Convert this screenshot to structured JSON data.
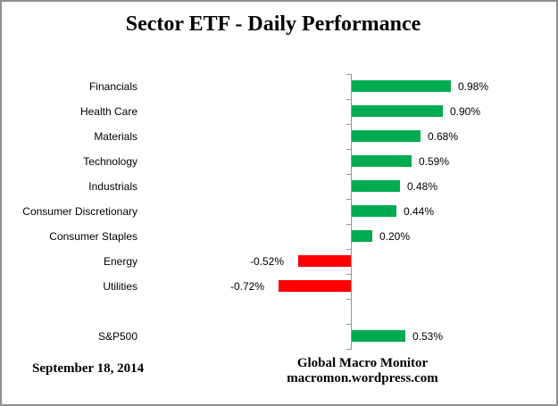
{
  "title": "Sector ETF - Daily Performance",
  "footer": {
    "date": "September 18, 2014",
    "source_line1": "Global Macro Monitor",
    "source_line2": "macromon.wordpress.com"
  },
  "colors": {
    "positive_bar": "#00AA50",
    "negative_bar": "#FF0000",
    "axis": "#969696",
    "frame_border": "#8F8F8F",
    "text": "#000000"
  },
  "chart_data": {
    "type": "bar",
    "orientation": "horizontal",
    "title": "Sector ETF - Daily Performance",
    "xlabel": "",
    "ylabel": "",
    "unit": "percent",
    "legend": "none",
    "gridlines": false,
    "value_axis_labels_visible": false,
    "data_label_position": "outside-end",
    "categories": [
      "Financials",
      "Health Care",
      "Materials",
      "Technology",
      "Industrials",
      "Consumer Discretionary",
      "Consumer Staples",
      "Energy",
      "Utilities",
      "",
      "S&P500"
    ],
    "values": [
      0.98,
      0.9,
      0.68,
      0.59,
      0.48,
      0.44,
      0.2,
      -0.52,
      -0.72,
      null,
      0.53
    ],
    "value_labels": [
      "0.98%",
      "0.90%",
      "0.68%",
      "0.59%",
      "0.48%",
      "0.44%",
      "0.20%",
      "-0.52%",
      "-0.72%",
      "",
      "0.53%"
    ]
  }
}
